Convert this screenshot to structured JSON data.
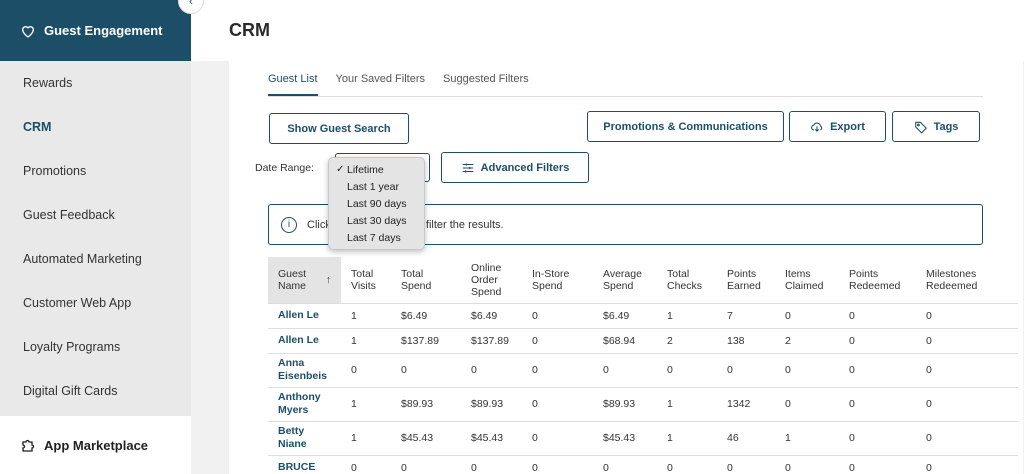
{
  "sidebar": {
    "header": "Guest Engagement",
    "items": [
      {
        "label": "Rewards"
      },
      {
        "label": "CRM"
      },
      {
        "label": "Promotions"
      },
      {
        "label": "Guest Feedback"
      },
      {
        "label": "Automated Marketing"
      },
      {
        "label": "Customer Web App"
      },
      {
        "label": "Loyalty Programs"
      },
      {
        "label": "Digital Gift Cards"
      }
    ],
    "footer": "App Marketplace"
  },
  "page": {
    "title": "CRM"
  },
  "tabs": [
    "Guest List",
    "Your Saved Filters",
    "Suggested Filters"
  ],
  "buttons": {
    "show_search": "Show Guest Search",
    "promotions": "Promotions & Communications",
    "export": "Export",
    "tags": "Tags",
    "advanced": "Advanced Filters"
  },
  "date_range": {
    "label": "Date Range:",
    "options": [
      "Lifetime",
      "Last 1 year",
      "Last 90 days",
      "Last 30 days",
      "Last 7 days"
    ],
    "selected": "Lifetime"
  },
  "info": {
    "part1": "Click",
    "part2": "er to filter the results."
  },
  "table": {
    "columns": [
      "Guest Name",
      "Total Visits",
      "Total Spend",
      "Online Order Spend",
      "In-Store Spend",
      "Average Spend",
      "Total Checks",
      "Points Earned",
      "Items Claimed",
      "Points Redeemed",
      "Milestones Redeemed"
    ],
    "rows": [
      [
        "Allen Le",
        "1",
        "$6.49",
        "$6.49",
        "0",
        "$6.49",
        "1",
        "7",
        "0",
        "0",
        "0"
      ],
      [
        "Allen Le",
        "1",
        "$137.89",
        "$137.89",
        "0",
        "$68.94",
        "2",
        "138",
        "2",
        "0",
        "0"
      ],
      [
        "Anna Eisenbeis",
        "0",
        "0",
        "0",
        "0",
        "0",
        "0",
        "0",
        "0",
        "0",
        "0"
      ],
      [
        "Anthony Myers",
        "1",
        "$89.93",
        "$89.93",
        "0",
        "$89.93",
        "1",
        "1342",
        "0",
        "0",
        "0"
      ],
      [
        "Betty Niane",
        "1",
        "$45.43",
        "$45.43",
        "0",
        "$45.43",
        "1",
        "46",
        "1",
        "0",
        "0"
      ],
      [
        "BRUCE",
        "0",
        "0",
        "0",
        "0",
        "0",
        "0",
        "0",
        "0",
        "0",
        "0"
      ]
    ]
  },
  "colors": {
    "primary": "#1d4e68",
    "sidebar_bg": "#e9e9e9",
    "dropdown_bg": "#e4e4e4"
  }
}
